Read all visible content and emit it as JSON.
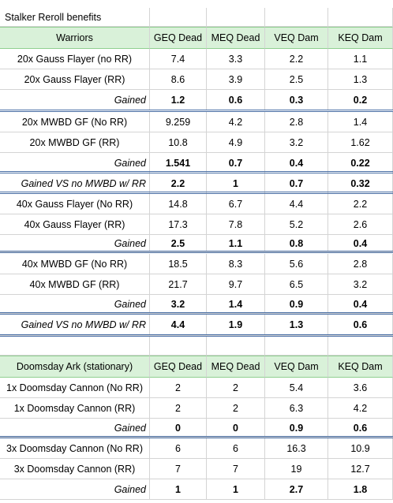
{
  "title": "Stalker Reroll benefits",
  "warriors": {
    "header": [
      "Warriors",
      "GEQ Dead",
      "MEQ Dead",
      "VEQ Dam",
      "KEQ Dam"
    ],
    "rows": [
      {
        "label": "20x Gauss Flayer (no RR)",
        "v": [
          "7.4",
          "3.3",
          "2.2",
          "1.1"
        ],
        "kind": "normal"
      },
      {
        "label": "20x Gauss Flayer (RR)",
        "v": [
          "8.6",
          "3.9",
          "2.5",
          "1.3"
        ],
        "kind": "normal"
      },
      {
        "label": "Gained",
        "v": [
          "1.2",
          "0.6",
          "0.3",
          "0.2"
        ],
        "kind": "gain"
      },
      {
        "label": "20x MWBD GF (No RR)",
        "v": [
          "9.259",
          "4.2",
          "2.8",
          "1.4"
        ],
        "kind": "normal"
      },
      {
        "label": "20x MWBD GF (RR)",
        "v": [
          "10.8",
          "4.9",
          "3.2",
          "1.62"
        ],
        "kind": "normal"
      },
      {
        "label": "Gained",
        "v": [
          "1.541",
          "0.7",
          "0.4",
          "0.22"
        ],
        "kind": "gain"
      },
      {
        "label": "Gained VS no MWBD w/ RR",
        "v": [
          "2.2",
          "1",
          "0.7",
          "0.32"
        ],
        "kind": "vs"
      },
      {
        "label": "40x Gauss Flayer (No RR)",
        "v": [
          "14.8",
          "6.7",
          "4.4",
          "2.2"
        ],
        "kind": "normal"
      },
      {
        "label": "40x Gauss Flayer (RR)",
        "v": [
          "17.3",
          "7.8",
          "5.2",
          "2.6"
        ],
        "kind": "normal"
      },
      {
        "label": "Gained",
        "v": [
          "2.5",
          "1.1",
          "0.8",
          "0.4"
        ],
        "kind": "gain"
      },
      {
        "label": "40x MWBD GF (No RR)",
        "v": [
          "18.5",
          "8.3",
          "5.6",
          "2.8"
        ],
        "kind": "normal"
      },
      {
        "label": "40x MWBD GF (RR)",
        "v": [
          "21.7",
          "9.7",
          "6.5",
          "3.2"
        ],
        "kind": "normal"
      },
      {
        "label": "Gained",
        "v": [
          "3.2",
          "1.4",
          "0.9",
          "0.4"
        ],
        "kind": "gain"
      },
      {
        "label": "Gained VS no MWBD w/ RR",
        "v": [
          "4.4",
          "1.9",
          "1.3",
          "0.6"
        ],
        "kind": "vs"
      }
    ]
  },
  "doomsday": {
    "header": [
      "Doomsday Ark (stationary)",
      "GEQ Dead",
      "MEQ Dead",
      "VEQ Dam",
      "KEQ Dam"
    ],
    "rows": [
      {
        "label": "1x Doomsday Cannon (No RR)",
        "v": [
          "2",
          "2",
          "5.4",
          "3.6"
        ],
        "kind": "normal"
      },
      {
        "label": "1x Doomsday Cannon (RR)",
        "v": [
          "2",
          "2",
          "6.3",
          "4.2"
        ],
        "kind": "normal"
      },
      {
        "label": "Gained",
        "v": [
          "0",
          "0",
          "0.9",
          "0.6"
        ],
        "kind": "gain"
      },
      {
        "label": "3x Doomsday Cannon (No RR)",
        "v": [
          "6",
          "6",
          "16.3",
          "10.9"
        ],
        "kind": "normal"
      },
      {
        "label": "3x Doomsday Cannon (RR)",
        "v": [
          "7",
          "7",
          "19",
          "12.7"
        ],
        "kind": "normal"
      },
      {
        "label": "Gained",
        "v": [
          "1",
          "1",
          "2.7",
          "1.8"
        ],
        "kind": "gain"
      }
    ]
  }
}
